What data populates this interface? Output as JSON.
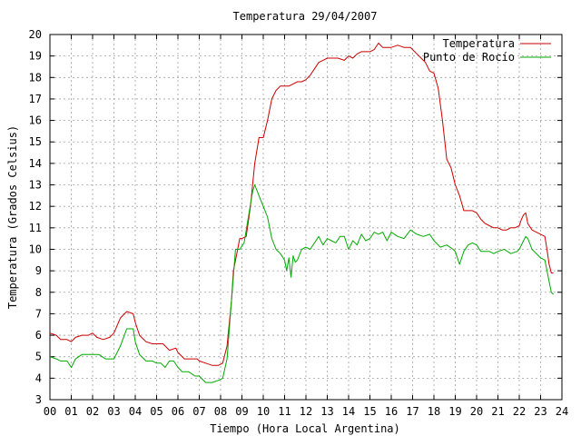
{
  "chart_data": {
    "type": "line",
    "title": "Temperatura 29/04/2007",
    "xlabel": "Tiempo (Hora Local Argentina)",
    "ylabel": "Temperatura (Grados Celsius)",
    "xlim": [
      0,
      24
    ],
    "ylim": [
      3,
      20
    ],
    "grid": true,
    "legend_position": "top-right",
    "x_ticks": [
      "00",
      "01",
      "02",
      "03",
      "04",
      "05",
      "06",
      "07",
      "08",
      "09",
      "10",
      "11",
      "12",
      "13",
      "14",
      "15",
      "16",
      "17",
      "18",
      "19",
      "20",
      "21",
      "22",
      "23",
      "24"
    ],
    "y_ticks": [
      "3",
      "4",
      "5",
      "6",
      "7",
      "8",
      "9",
      "10",
      "11",
      "12",
      "13",
      "14",
      "15",
      "16",
      "17",
      "18",
      "19",
      "20"
    ],
    "series": [
      {
        "name": "Temperatura",
        "color": "#cc0000",
        "x": [
          0.0,
          0.3,
          0.5,
          0.8,
          1.0,
          1.2,
          1.5,
          1.8,
          2.0,
          2.2,
          2.5,
          2.8,
          3.0,
          3.3,
          3.6,
          3.9,
          4.0,
          4.2,
          4.5,
          4.8,
          5.0,
          5.3,
          5.6,
          5.9,
          6.0,
          6.3,
          6.6,
          6.9,
          7.0,
          7.3,
          7.6,
          7.9,
          8.1,
          8.3,
          8.5,
          8.6,
          8.8,
          8.9,
          9.0,
          9.2,
          9.4,
          9.6,
          9.8,
          10.0,
          10.2,
          10.4,
          10.6,
          10.8,
          11.0,
          11.2,
          11.4,
          11.6,
          11.8,
          12.0,
          12.2,
          12.4,
          12.6,
          12.8,
          13.0,
          13.2,
          13.5,
          13.8,
          14.0,
          14.2,
          14.4,
          14.6,
          14.8,
          15.0,
          15.2,
          15.4,
          15.6,
          15.8,
          16.0,
          16.3,
          16.6,
          16.9,
          17.0,
          17.2,
          17.4,
          17.6,
          17.8,
          18.0,
          18.2,
          18.4,
          18.6,
          18.8,
          19.0,
          19.2,
          19.4,
          19.6,
          19.8,
          20.0,
          20.2,
          20.4,
          20.6,
          20.8,
          21.0,
          21.2,
          21.4,
          21.6,
          21.8,
          22.0,
          22.1,
          22.2,
          22.3,
          22.4,
          22.6,
          22.8,
          23.0,
          23.2,
          23.3,
          23.4,
          23.5,
          23.6
        ],
        "values": [
          6.1,
          6.0,
          5.8,
          5.8,
          5.7,
          5.9,
          6.0,
          6.0,
          6.1,
          5.9,
          5.8,
          5.9,
          6.1,
          6.8,
          7.1,
          7.0,
          6.6,
          6.0,
          5.7,
          5.6,
          5.6,
          5.6,
          5.3,
          5.4,
          5.2,
          4.9,
          4.9,
          4.9,
          4.8,
          4.7,
          4.6,
          4.6,
          4.7,
          5.5,
          7.5,
          9.0,
          10.0,
          10.5,
          10.5,
          10.6,
          12.0,
          14.0,
          15.2,
          15.2,
          16.0,
          17.0,
          17.4,
          17.6,
          17.6,
          17.6,
          17.7,
          17.8,
          17.8,
          17.9,
          18.1,
          18.4,
          18.7,
          18.8,
          18.9,
          18.9,
          18.9,
          18.8,
          19.0,
          18.9,
          19.1,
          19.2,
          19.2,
          19.2,
          19.3,
          19.6,
          19.4,
          19.4,
          19.4,
          19.5,
          19.4,
          19.4,
          19.3,
          19.1,
          18.9,
          18.7,
          18.3,
          18.2,
          17.5,
          16.0,
          14.2,
          13.8,
          13.0,
          12.5,
          11.8,
          11.8,
          11.8,
          11.7,
          11.4,
          11.2,
          11.1,
          11.0,
          11.0,
          10.9,
          10.9,
          11.0,
          11.0,
          11.1,
          11.4,
          11.6,
          11.7,
          11.2,
          10.9,
          10.8,
          10.7,
          10.6,
          10.0,
          9.3,
          8.9,
          8.9
        ]
      },
      {
        "name": "Punto de Rocío",
        "color": "#00aa00",
        "x": [
          0.0,
          0.3,
          0.5,
          0.8,
          1.0,
          1.2,
          1.5,
          1.8,
          2.0,
          2.3,
          2.6,
          3.0,
          3.3,
          3.6,
          3.9,
          4.0,
          4.2,
          4.5,
          4.8,
          5.0,
          5.2,
          5.4,
          5.6,
          5.8,
          6.0,
          6.2,
          6.5,
          6.8,
          7.0,
          7.3,
          7.6,
          7.9,
          8.1,
          8.3,
          8.5,
          8.7,
          8.9,
          9.1,
          9.3,
          9.5,
          9.6,
          9.8,
          10.0,
          10.2,
          10.4,
          10.6,
          10.8,
          11.0,
          11.1,
          11.2,
          11.3,
          11.4,
          11.5,
          11.6,
          11.8,
          12.0,
          12.2,
          12.4,
          12.6,
          12.8,
          13.0,
          13.2,
          13.4,
          13.6,
          13.8,
          14.0,
          14.2,
          14.4,
          14.6,
          14.8,
          15.0,
          15.2,
          15.4,
          15.6,
          15.8,
          16.0,
          16.3,
          16.6,
          16.9,
          17.2,
          17.5,
          17.8,
          18.0,
          18.3,
          18.6,
          18.9,
          19.0,
          19.2,
          19.4,
          19.6,
          19.8,
          20.0,
          20.2,
          20.4,
          20.6,
          20.8,
          21.0,
          21.3,
          21.6,
          21.9,
          22.0,
          22.2,
          22.3,
          22.4,
          22.6,
          22.8,
          23.0,
          23.2,
          23.4,
          23.5,
          23.6
        ],
        "values": [
          5.0,
          4.9,
          4.8,
          4.8,
          4.5,
          4.9,
          5.1,
          5.1,
          5.1,
          5.1,
          4.9,
          4.9,
          5.5,
          6.3,
          6.3,
          5.7,
          5.1,
          4.8,
          4.8,
          4.7,
          4.7,
          4.5,
          4.8,
          4.8,
          4.5,
          4.3,
          4.3,
          4.1,
          4.1,
          3.8,
          3.8,
          3.9,
          4.0,
          4.9,
          7.5,
          10.0,
          10.0,
          10.3,
          11.5,
          12.7,
          13.0,
          12.5,
          12.0,
          11.5,
          10.5,
          10.0,
          9.8,
          9.5,
          9.0,
          9.6,
          8.7,
          9.7,
          9.4,
          9.5,
          10.0,
          10.1,
          10.0,
          10.3,
          10.6,
          10.2,
          10.5,
          10.4,
          10.3,
          10.6,
          10.6,
          10.0,
          10.4,
          10.2,
          10.7,
          10.4,
          10.5,
          10.8,
          10.7,
          10.8,
          10.4,
          10.8,
          10.6,
          10.5,
          10.9,
          10.7,
          10.6,
          10.7,
          10.4,
          10.1,
          10.2,
          10.0,
          9.9,
          9.3,
          9.9,
          10.2,
          10.3,
          10.2,
          9.9,
          9.9,
          9.9,
          9.8,
          9.9,
          10.0,
          9.8,
          9.9,
          10.0,
          10.4,
          10.6,
          10.5,
          10.0,
          9.8,
          9.6,
          9.5,
          8.5,
          8.0,
          7.9
        ]
      }
    ]
  }
}
